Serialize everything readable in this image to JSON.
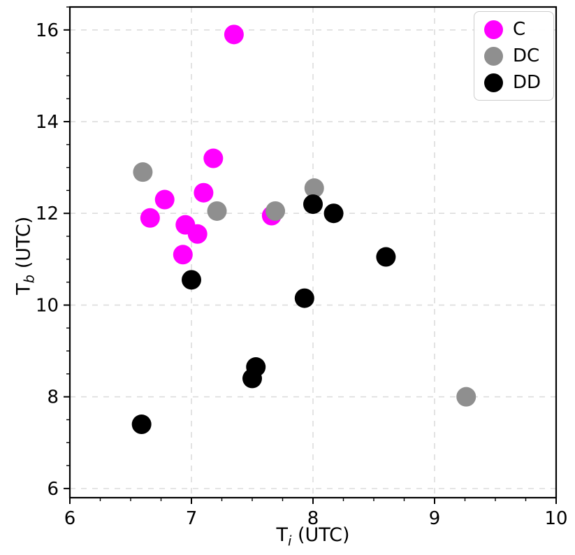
{
  "chart_data": {
    "type": "scatter",
    "title": "",
    "xlabel": {
      "base": "T",
      "sub": "i",
      "rest": " (UTC)"
    },
    "ylabel": {
      "base": "T",
      "sub": "b",
      "rest": " (UTC)"
    },
    "xlim": [
      6,
      10
    ],
    "ylim": [
      5.8,
      16.5
    ],
    "xticks": [
      6,
      7,
      8,
      9,
      10
    ],
    "yticks": [
      6,
      8,
      10,
      12,
      14,
      16
    ],
    "minor_xtick_step": 0.25,
    "minor_ytick_step": 0.5,
    "grid": true,
    "grid_color": "#dcdcdc",
    "legend_position": "upper right",
    "marker_radius": 14,
    "series": [
      {
        "name": "C",
        "color": "#ff00ff",
        "points": [
          [
            7.35,
            15.9
          ],
          [
            7.18,
            13.2
          ],
          [
            7.1,
            12.45
          ],
          [
            6.78,
            12.3
          ],
          [
            6.66,
            11.9
          ],
          [
            6.95,
            11.75
          ],
          [
            7.05,
            11.55
          ],
          [
            6.93,
            11.1
          ],
          [
            7.66,
            11.95
          ]
        ]
      },
      {
        "name": "DC",
        "color": "#8f8f8f",
        "points": [
          [
            6.6,
            12.9
          ],
          [
            7.21,
            12.05
          ],
          [
            7.69,
            12.05
          ],
          [
            8.01,
            12.55
          ],
          [
            9.26,
            8.0
          ]
        ]
      },
      {
        "name": "DD",
        "color": "#000000",
        "points": [
          [
            7.0,
            10.55
          ],
          [
            8.0,
            12.2
          ],
          [
            8.17,
            12.0
          ],
          [
            8.6,
            11.05
          ],
          [
            7.93,
            10.15
          ],
          [
            7.53,
            8.65
          ],
          [
            7.5,
            8.4
          ],
          [
            6.59,
            7.4
          ]
        ]
      }
    ]
  }
}
